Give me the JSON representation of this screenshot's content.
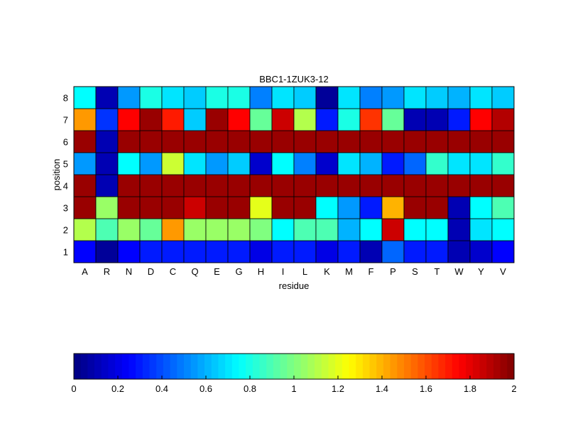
{
  "chart_data": {
    "type": "heatmap",
    "title": "BBC1-1ZUK3-12",
    "xlabel": "residue",
    "ylabel": "position",
    "x_categories": [
      "A",
      "R",
      "N",
      "D",
      "C",
      "Q",
      "E",
      "G",
      "H",
      "I",
      "L",
      "K",
      "M",
      "F",
      "P",
      "S",
      "T",
      "W",
      "Y",
      "V"
    ],
    "y_categories": [
      "1",
      "2",
      "3",
      "4",
      "5",
      "6",
      "7",
      "8"
    ],
    "values": [
      [
        0.25,
        0.05,
        0.25,
        0.3,
        0.3,
        0.3,
        0.3,
        0.3,
        0.2,
        0.3,
        0.3,
        0.2,
        0.3,
        0.1,
        0.45,
        0.3,
        0.3,
        0.1,
        0.15,
        0.25
      ],
      [
        1.1,
        0.9,
        1.05,
        0.95,
        1.45,
        1.05,
        1.05,
        1.05,
        1.0,
        0.75,
        0.9,
        0.9,
        0.6,
        0.75,
        1.85,
        0.75,
        0.75,
        0.1,
        0.7,
        0.75
      ],
      [
        1.95,
        1.05,
        1.95,
        1.95,
        1.95,
        1.85,
        1.95,
        1.95,
        1.2,
        1.95,
        1.95,
        0.75,
        0.55,
        0.3,
        1.4,
        1.95,
        1.95,
        0.1,
        0.75,
        0.9
      ],
      [
        1.95,
        0.1,
        1.95,
        1.95,
        1.95,
        1.95,
        1.95,
        1.95,
        1.95,
        1.95,
        1.95,
        1.95,
        1.95,
        1.95,
        1.95,
        1.95,
        1.95,
        1.95,
        1.95,
        1.95
      ],
      [
        0.55,
        0.1,
        0.75,
        0.55,
        1.15,
        0.7,
        0.55,
        0.65,
        0.15,
        0.75,
        0.5,
        0.15,
        0.7,
        0.6,
        0.3,
        0.45,
        0.85,
        0.7,
        0.7,
        0.85
      ],
      [
        1.95,
        0.1,
        1.95,
        1.95,
        1.95,
        1.95,
        1.95,
        1.95,
        1.95,
        1.95,
        1.95,
        1.95,
        1.95,
        1.95,
        1.95,
        1.95,
        1.95,
        1.95,
        1.95,
        1.95
      ],
      [
        1.45,
        0.35,
        1.75,
        1.95,
        1.7,
        0.65,
        1.95,
        1.75,
        0.95,
        1.85,
        1.1,
        0.3,
        0.8,
        1.65,
        0.95,
        0.1,
        0.1,
        0.3,
        1.75,
        1.9
      ],
      [
        0.75,
        0.1,
        0.55,
        0.8,
        0.7,
        0.65,
        0.8,
        0.8,
        0.5,
        0.7,
        0.65,
        0.05,
        0.7,
        0.5,
        0.55,
        0.7,
        0.65,
        0.6,
        0.7,
        0.65
      ]
    ],
    "colorbar": {
      "colormap": "jet",
      "range": [
        0,
        2
      ],
      "ticks": [
        "0",
        "0.2",
        "0.4",
        "0.6",
        "0.8",
        "1",
        "1.2",
        "1.4",
        "1.6",
        "1.8",
        "2"
      ]
    }
  }
}
